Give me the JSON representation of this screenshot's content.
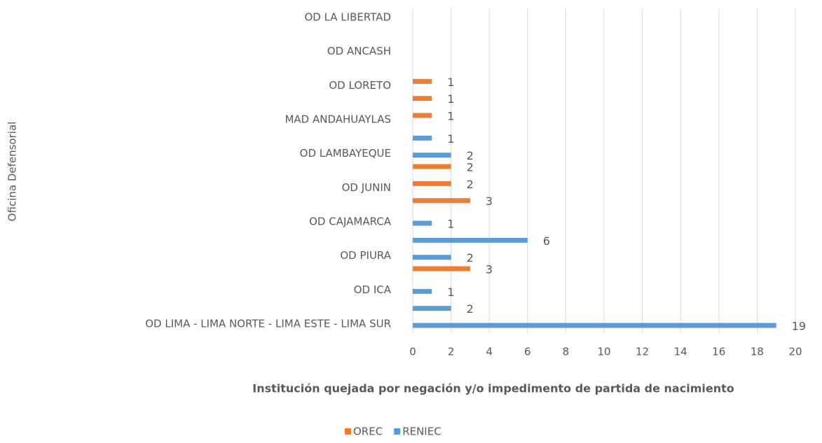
{
  "chart_data": {
    "type": "barh",
    "xlabel": "Institución quejada por negación y/o impedimento de partida de nacimiento",
    "ylabel": "Oficina Defensorial",
    "categories": [
      "OD LIMA - LIMA NORTE - LIMA ESTE - LIMA SUR",
      null,
      "OD ICA",
      null,
      "OD PIURA",
      null,
      "OD CAJAMARCA",
      null,
      "OD JUNIN",
      null,
      "OD LAMBAYEQUE",
      null,
      "MAD ANDAHUAYLAS",
      null,
      "OD LORETO",
      null,
      "OD ANCASH",
      null,
      "OD LA LIBERTAD"
    ],
    "series": [
      {
        "name": "OREC",
        "color": "#ED7D31",
        "values": [
          null,
          null,
          null,
          3,
          null,
          null,
          null,
          3,
          2,
          2,
          null,
          null,
          1,
          1,
          1,
          null,
          null,
          null,
          null
        ]
      },
      {
        "name": "RENIEC",
        "color": "#5B9BD5",
        "values": [
          19,
          2,
          1,
          null,
          2,
          6,
          1,
          null,
          null,
          null,
          2,
          1,
          null,
          null,
          null,
          null,
          null,
          null,
          null
        ]
      }
    ],
    "xlim": [
      0,
      20
    ],
    "xticks": [
      0,
      2,
      4,
      6,
      8,
      10,
      12,
      14,
      16,
      18,
      20
    ],
    "grid": true,
    "legend": "bottom"
  }
}
